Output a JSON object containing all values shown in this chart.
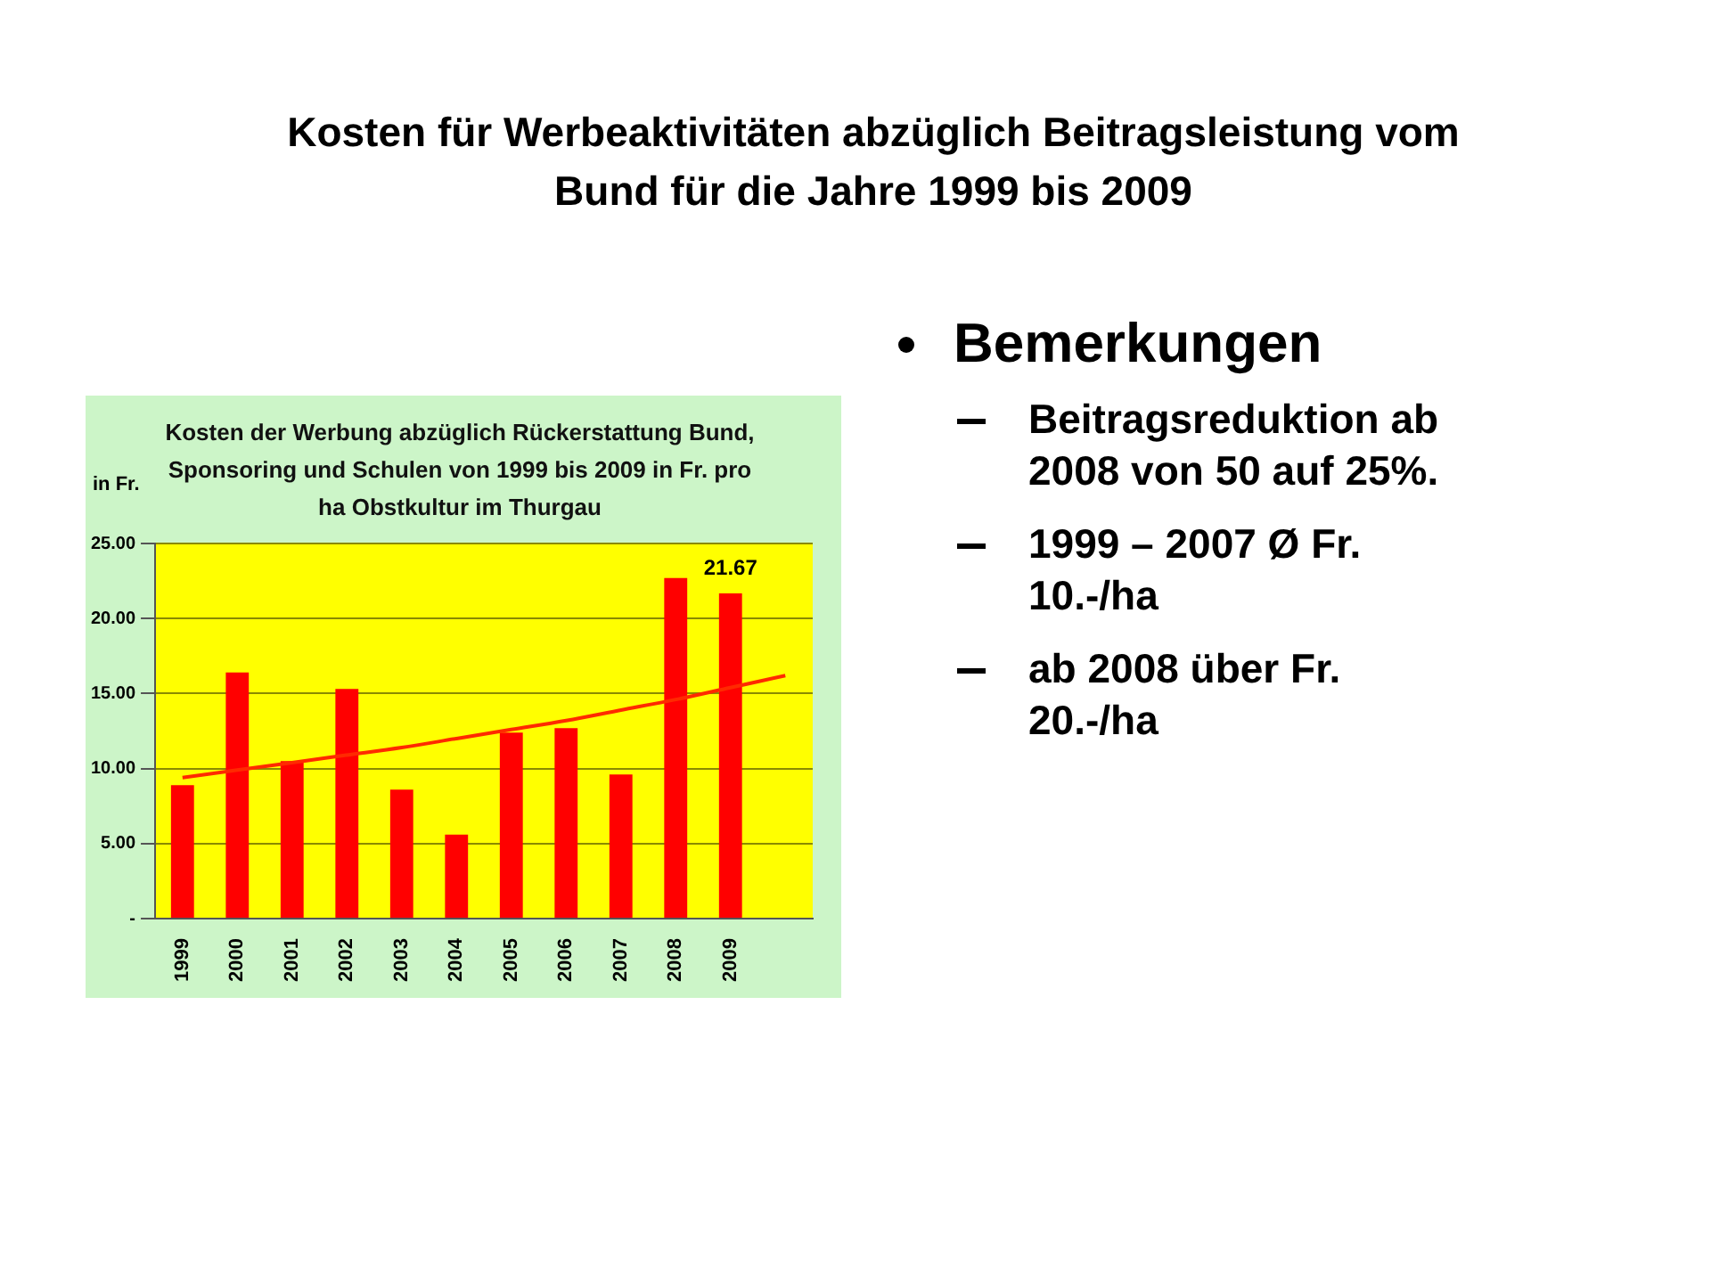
{
  "chart_data": {
    "type": "bar",
    "title": "Kosten für Werbeaktivitäten abzüglich Beitragsleistung vom Bund für die Jahre 1999 bis 2009",
    "subtitle": "Kosten der Werbung abzüglich Rückerstattung Bund, Sponsoring und Schulen von 1999 bis 2009 in Fr. pro ha Obstkultur im Thurgau",
    "ylabel": "in Fr.",
    "categories": [
      "1999",
      "2000",
      "2001",
      "2002",
      "2003",
      "2004",
      "2005",
      "2006",
      "2007",
      "2008",
      "2009",
      null
    ],
    "series": [
      {
        "color": "#ff0000",
        "values": [
          8.9,
          16.4,
          10.5,
          15.3,
          8.6,
          5.6,
          12.4,
          12.7,
          9.6,
          22.7,
          21.67,
          null
        ],
        "value_labels": [
          null,
          null,
          null,
          null,
          null,
          null,
          null,
          null,
          null,
          null,
          "21.67",
          null
        ]
      },
      {
        "type": "line",
        "color": "#ff2a00",
        "marker": "none",
        "values": [
          9.4,
          9.9,
          10.4,
          10.9,
          11.4,
          12.0,
          12.6,
          13.2,
          13.9,
          14.6,
          15.4,
          16.2
        ]
      }
    ],
    "ylim": [
      0,
      25
    ],
    "yticks": [
      {
        "value": 0,
        "label": "-"
      },
      {
        "value": 5,
        "label": "5.00"
      },
      {
        "value": 10,
        "label": "10.00"
      },
      {
        "value": 15,
        "label": "15.00"
      },
      {
        "value": 20,
        "label": "20.00"
      },
      {
        "value": 25,
        "label": "25.00"
      }
    ],
    "grid": "y",
    "legend": false,
    "annotations": [
      "Bemerkungen",
      "Beitragsreduktion ab 2008 von 50 auf 25%.",
      "1999 – 2007 Ø Fr. 10.-/ha",
      "ab 2008 über Fr. 20.-/ha"
    ]
  }
}
